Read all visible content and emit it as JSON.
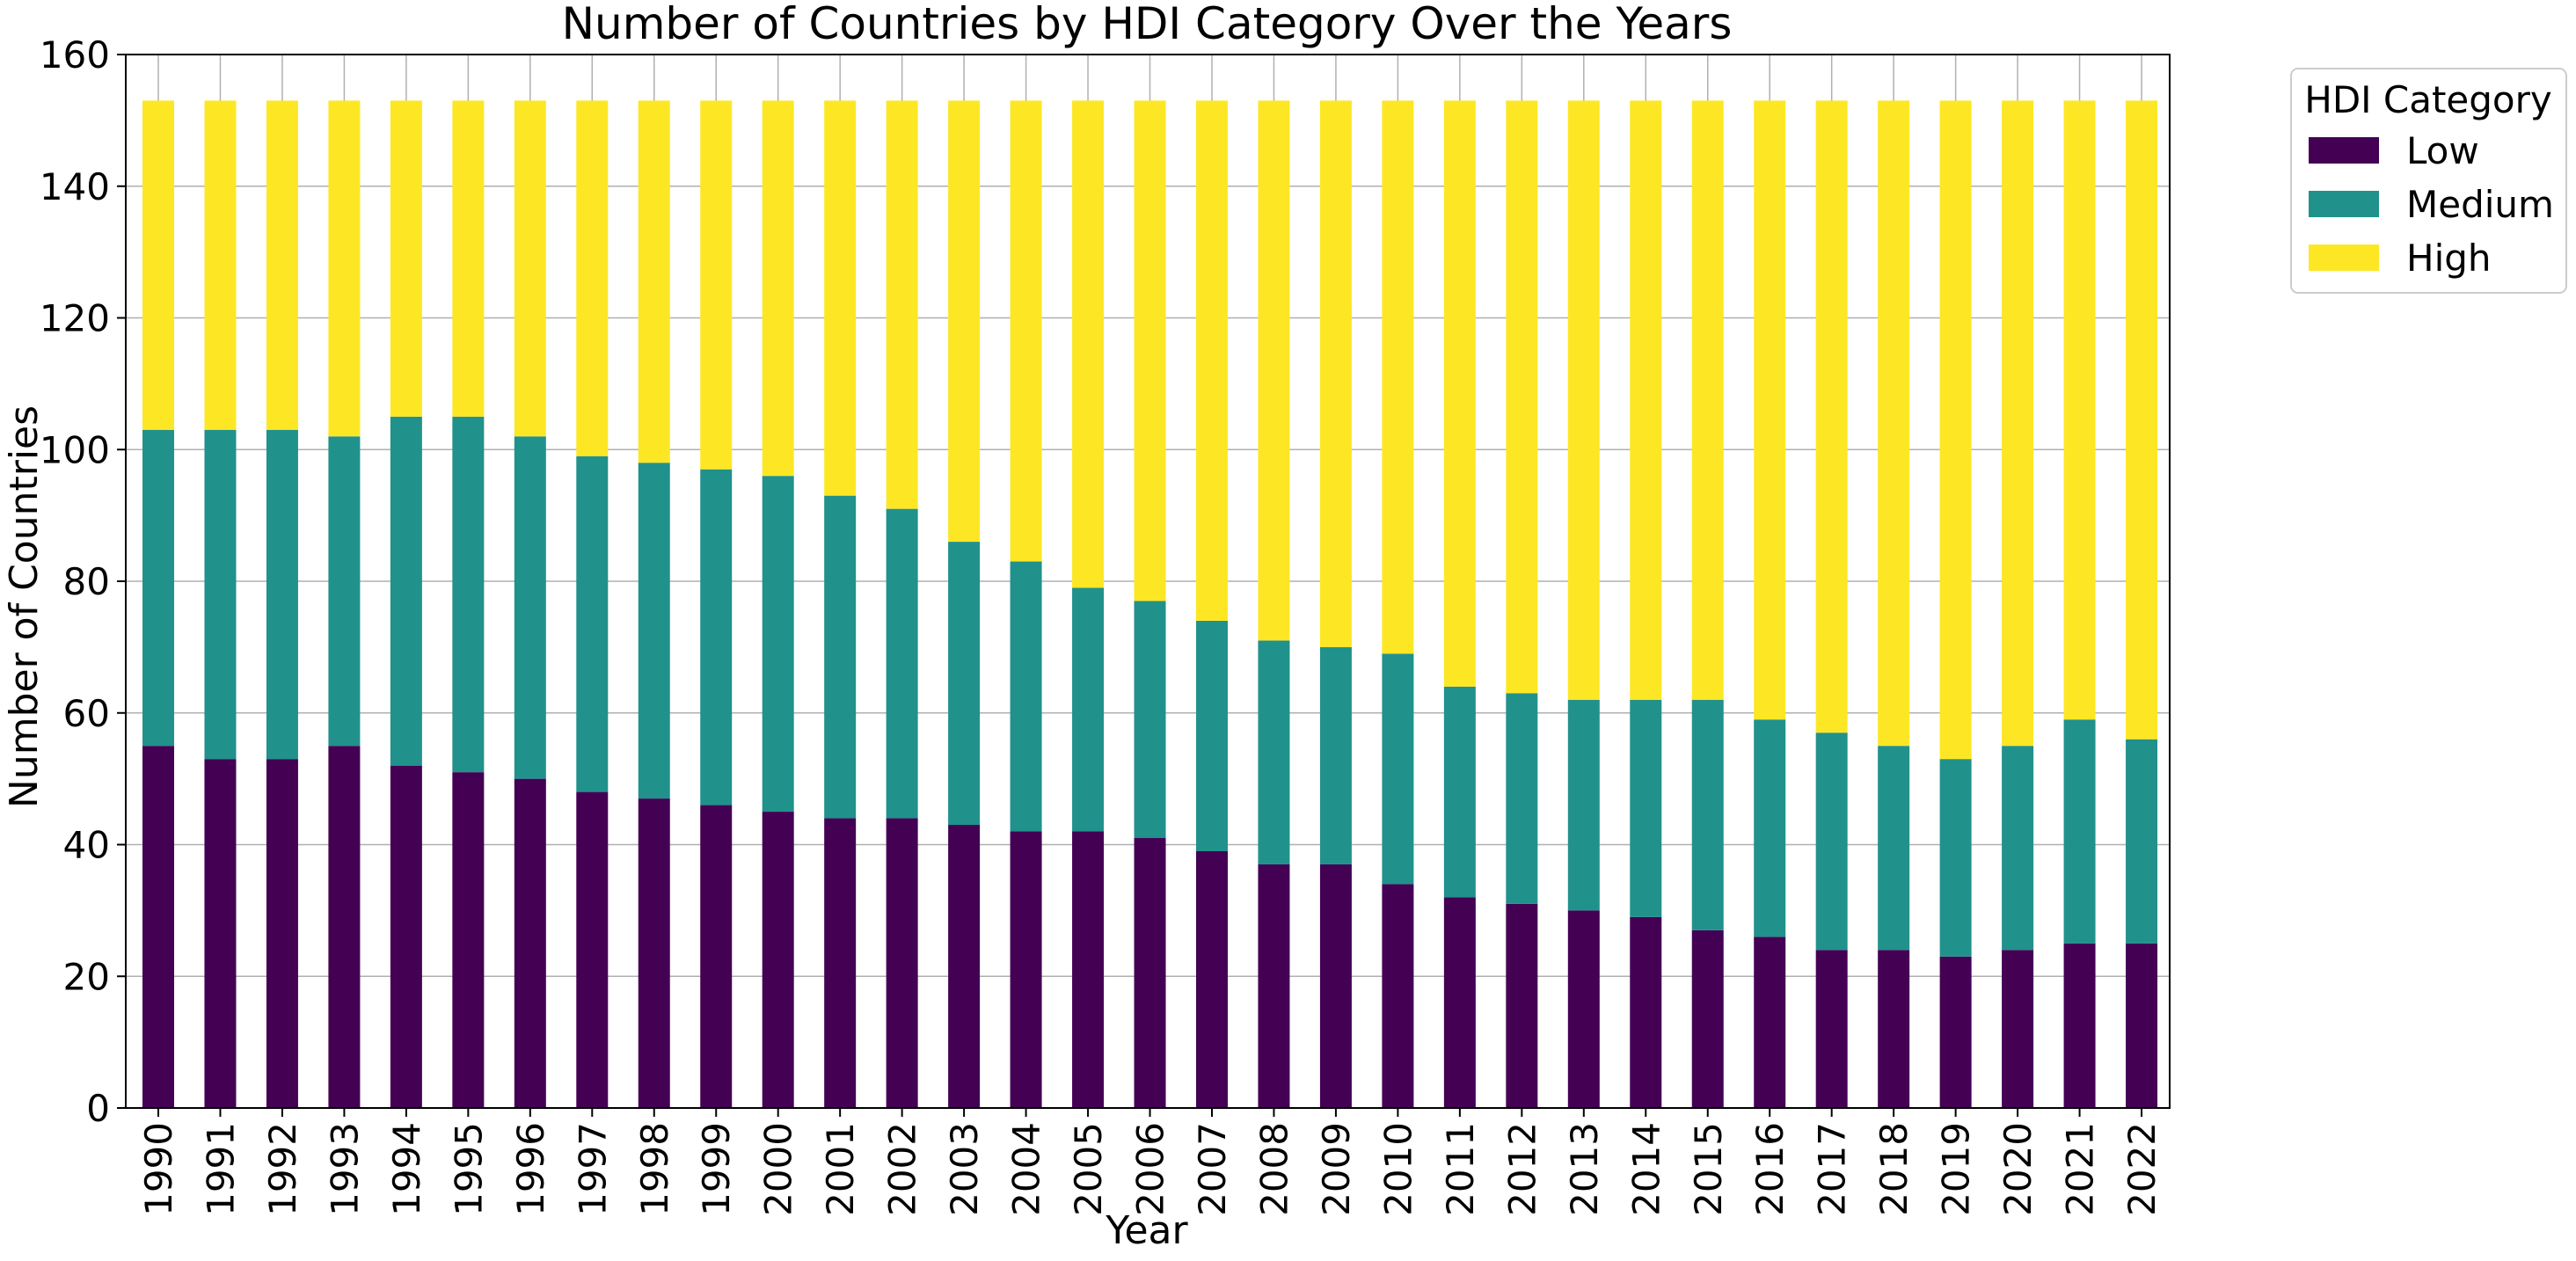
{
  "chart_data": {
    "type": "bar",
    "stacked": true,
    "title": "Number of Countries by HDI Category Over the Years",
    "xlabel": "Year",
    "ylabel": "Number of Countries",
    "ylim": [
      0,
      160
    ],
    "yticks": [
      0,
      20,
      40,
      60,
      80,
      100,
      120,
      140,
      160
    ],
    "grid": true,
    "legend": {
      "title": "HDI Category",
      "placement": "outside-top-right"
    },
    "categories": [
      "1990",
      "1991",
      "1992",
      "1993",
      "1994",
      "1995",
      "1996",
      "1997",
      "1998",
      "1999",
      "2000",
      "2001",
      "2002",
      "2003",
      "2004",
      "2005",
      "2006",
      "2007",
      "2008",
      "2009",
      "2010",
      "2011",
      "2012",
      "2013",
      "2014",
      "2015",
      "2016",
      "2017",
      "2018",
      "2019",
      "2020",
      "2021",
      "2022"
    ],
    "series": [
      {
        "name": "Low",
        "color": "#440154",
        "values": [
          55,
          53,
          53,
          55,
          52,
          51,
          50,
          48,
          47,
          46,
          45,
          44,
          44,
          43,
          42,
          42,
          41,
          39,
          37,
          37,
          34,
          32,
          31,
          30,
          29,
          27,
          26,
          24,
          24,
          23,
          24,
          25,
          25
        ]
      },
      {
        "name": "Medium",
        "color": "#21918c",
        "values": [
          48,
          50,
          50,
          47,
          53,
          54,
          52,
          51,
          51,
          51,
          51,
          49,
          47,
          43,
          41,
          37,
          36,
          35,
          34,
          33,
          35,
          32,
          32,
          32,
          33,
          35,
          33,
          33,
          31,
          30,
          31,
          34,
          31
        ]
      },
      {
        "name": "High",
        "color": "#fde725",
        "values": [
          50,
          50,
          50,
          51,
          48,
          48,
          51,
          54,
          55,
          56,
          57,
          60,
          62,
          67,
          70,
          74,
          76,
          79,
          82,
          83,
          84,
          89,
          90,
          91,
          91,
          91,
          94,
          96,
          98,
          100,
          98,
          94,
          97
        ]
      }
    ]
  }
}
